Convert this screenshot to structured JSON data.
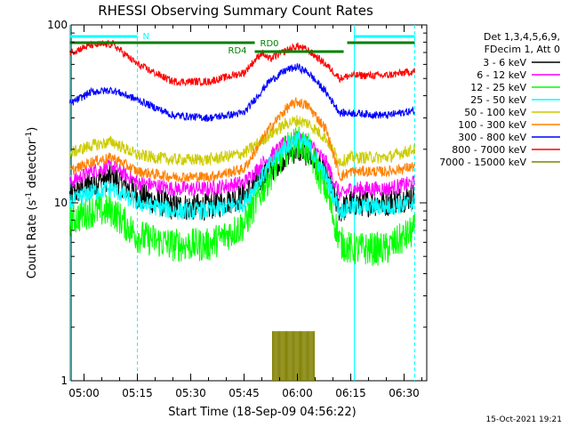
{
  "chart_data": {
    "type": "line",
    "title": "RHESSI Observing Summary Count Rates",
    "xlabel": "Start Time (18-Sep-09 04:56:22)",
    "ylabel_prefix": "Count Rate (s",
    "ylabel_sup1": "-1",
    "ylabel_mid": " detector",
    "ylabel_sup2": "-1",
    "ylabel_suffix": ")",
    "yscale": "log",
    "ylim": [
      1,
      100
    ],
    "xlim_minutes_after_0456_22": [
      0,
      100
    ],
    "x_tick_labels": [
      "05:00",
      "05:15",
      "05:30",
      "05:45",
      "06:00",
      "06:15",
      "06:30"
    ],
    "x_ticks_hhmm": [
      "05:00",
      "05:15",
      "05:30",
      "05:45",
      "06:00",
      "06:15",
      "06:30"
    ],
    "y_tick_labels": [
      "1",
      "10",
      "100"
    ],
    "legend_header": [
      "Det 1,3,4,5,6,9,",
      "FDecim 1, Att 0"
    ],
    "legend_position": "right",
    "series": [
      {
        "name": "3 - 6 keV",
        "color": "#000000",
        "points": [
          [
            "04:56",
            11
          ],
          [
            "05:02",
            13
          ],
          [
            "05:08",
            14
          ],
          [
            "05:15",
            11
          ],
          [
            "05:25",
            9.5
          ],
          [
            "05:35",
            9.5
          ],
          [
            "05:45",
            11
          ],
          [
            "05:52",
            15
          ],
          [
            "05:57",
            19
          ],
          [
            "06:00",
            20
          ],
          [
            "06:03",
            19
          ],
          [
            "06:08",
            14
          ],
          [
            "06:12",
            9
          ],
          [
            "06:15",
            10
          ],
          [
            "06:25",
            10
          ],
          [
            "06:33",
            11
          ]
        ]
      },
      {
        "name": "6 - 12 keV",
        "color": "#ff00ff",
        "points": [
          [
            "04:56",
            13
          ],
          [
            "05:02",
            15
          ],
          [
            "05:08",
            16
          ],
          [
            "05:15",
            13
          ],
          [
            "05:25",
            12
          ],
          [
            "05:35",
            12
          ],
          [
            "05:45",
            13
          ],
          [
            "05:52",
            18
          ],
          [
            "05:57",
            22
          ],
          [
            "06:00",
            23
          ],
          [
            "06:03",
            22
          ],
          [
            "06:08",
            17
          ],
          [
            "06:12",
            11
          ],
          [
            "06:15",
            12
          ],
          [
            "06:25",
            12
          ],
          [
            "06:33",
            13
          ]
        ]
      },
      {
        "name": "12 - 25 keV",
        "color": "#00ff00",
        "points": [
          [
            "04:56",
            8
          ],
          [
            "05:02",
            9
          ],
          [
            "05:08",
            9
          ],
          [
            "05:15",
            6.5
          ],
          [
            "05:25",
            5.8
          ],
          [
            "05:35",
            5.8
          ],
          [
            "05:45",
            7.5
          ],
          [
            "05:52",
            14
          ],
          [
            "05:57",
            20
          ],
          [
            "06:00",
            22
          ],
          [
            "06:03",
            20
          ],
          [
            "06:08",
            12
          ],
          [
            "06:12",
            6
          ],
          [
            "06:15",
            5.5
          ],
          [
            "06:25",
            5.5
          ],
          [
            "06:33",
            7
          ]
        ]
      },
      {
        "name": "25 - 50 keV",
        "color": "#00ffff",
        "points": [
          [
            "04:56",
            10
          ],
          [
            "05:02",
            11.5
          ],
          [
            "05:08",
            12
          ],
          [
            "05:15",
            10
          ],
          [
            "05:25",
            9
          ],
          [
            "05:35",
            9
          ],
          [
            "05:45",
            10
          ],
          [
            "05:52",
            16
          ],
          [
            "05:57",
            21
          ],
          [
            "06:00",
            23
          ],
          [
            "06:03",
            21
          ],
          [
            "06:08",
            14
          ],
          [
            "06:12",
            9
          ],
          [
            "06:15",
            9.5
          ],
          [
            "06:25",
            9.5
          ],
          [
            "06:33",
            10
          ]
        ]
      },
      {
        "name": "50 - 100 keV",
        "color": "#cccc00",
        "points": [
          [
            "04:56",
            19
          ],
          [
            "05:02",
            21
          ],
          [
            "05:08",
            22
          ],
          [
            "05:15",
            18.5
          ],
          [
            "05:25",
            17.5
          ],
          [
            "05:35",
            17.5
          ],
          [
            "05:45",
            19
          ],
          [
            "05:52",
            24
          ],
          [
            "05:57",
            28
          ],
          [
            "06:00",
            29
          ],
          [
            "06:03",
            28
          ],
          [
            "06:08",
            23
          ],
          [
            "06:12",
            17
          ],
          [
            "06:15",
            18
          ],
          [
            "06:25",
            18
          ],
          [
            "06:33",
            20
          ]
        ]
      },
      {
        "name": "100 - 300 keV",
        "color": "#ff8000",
        "points": [
          [
            "04:56",
            15
          ],
          [
            "05:02",
            17
          ],
          [
            "05:08",
            18
          ],
          [
            "05:15",
            15
          ],
          [
            "05:25",
            14
          ],
          [
            "05:35",
            14
          ],
          [
            "05:45",
            15.5
          ],
          [
            "05:52",
            26
          ],
          [
            "05:57",
            34
          ],
          [
            "06:00",
            37
          ],
          [
            "06:03",
            35
          ],
          [
            "06:08",
            26
          ],
          [
            "06:12",
            14
          ],
          [
            "06:15",
            15
          ],
          [
            "06:25",
            15
          ],
          [
            "06:33",
            16
          ]
        ]
      },
      {
        "name": "300 - 800 keV",
        "color": "#0000ff",
        "points": [
          [
            "04:56",
            36
          ],
          [
            "05:02",
            42
          ],
          [
            "05:08",
            43
          ],
          [
            "05:15",
            38
          ],
          [
            "05:25",
            31
          ],
          [
            "05:35",
            30
          ],
          [
            "05:45",
            32
          ],
          [
            "05:52",
            48
          ],
          [
            "05:57",
            56
          ],
          [
            "06:00",
            58
          ],
          [
            "06:03",
            54
          ],
          [
            "06:08",
            42
          ],
          [
            "06:12",
            32
          ],
          [
            "06:15",
            32
          ],
          [
            "06:25",
            31
          ],
          [
            "06:33",
            33
          ]
        ]
      },
      {
        "name": "800 - 7000 keV",
        "color": "#ff0000",
        "points": [
          [
            "04:56",
            70
          ],
          [
            "05:02",
            77
          ],
          [
            "05:08",
            78
          ],
          [
            "05:15",
            60
          ],
          [
            "05:25",
            48
          ],
          [
            "05:35",
            48
          ],
          [
            "05:45",
            54
          ],
          [
            "05:47",
            60
          ],
          [
            "05:50",
            70
          ],
          [
            "05:52",
            64
          ],
          [
            "05:57",
            72
          ],
          [
            "06:00",
            76
          ],
          [
            "06:03",
            72
          ],
          [
            "06:08",
            60
          ],
          [
            "06:12",
            50
          ],
          [
            "06:15",
            52
          ],
          [
            "06:25",
            52
          ],
          [
            "06:33",
            55
          ]
        ]
      },
      {
        "name": "7000 - 15000 keV",
        "color": "#808000",
        "points": [
          [
            "05:53",
            1.9
          ],
          [
            "05:56",
            1.9
          ],
          [
            "05:59",
            1.9
          ],
          [
            "06:02",
            1.9
          ],
          [
            "06:05",
            1.9
          ]
        ]
      }
    ],
    "annotations": {
      "flags": [
        {
          "label": "N",
          "color": "#00ffff",
          "start": "04:56",
          "end": "05:15"
        },
        {
          "label": "",
          "color": "#00ffff",
          "start": "06:16",
          "end": "06:33"
        }
      ],
      "attenuator_bars": [
        {
          "label": "",
          "color": "#008000",
          "start": "04:56",
          "end": "05:48"
        },
        {
          "label": "RD4",
          "color": "#008000",
          "start": "05:47",
          "end": "05:48"
        },
        {
          "label": "RD0",
          "color": "#008000",
          "start": "05:48",
          "end": "06:13"
        },
        {
          "label": "",
          "color": "#008000",
          "start": "06:14",
          "end": "06:33"
        }
      ],
      "vertical_lines": [
        {
          "time": "04:56",
          "style": "solid"
        },
        {
          "time": "05:15",
          "style": "dashed"
        },
        {
          "time": "06:16",
          "style": "solid"
        },
        {
          "time": "06:33",
          "style": "dashed"
        }
      ]
    },
    "grid": false,
    "footer_date": "15-Oct-2021 19:21"
  }
}
